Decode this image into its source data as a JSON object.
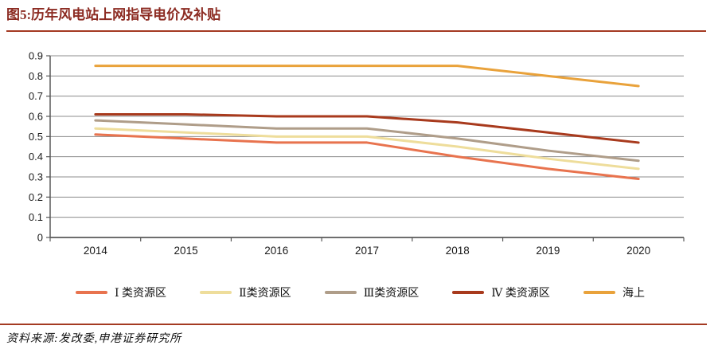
{
  "header": {
    "title": "图5:历年风电站上网指导电价及补贴",
    "accent_color": "#8C2B22",
    "rule_color": "#A43A22"
  },
  "chart_data": {
    "type": "line",
    "title": "历年风电站上网指导电价及补贴",
    "categories": [
      "2014",
      "2015",
      "2016",
      "2017",
      "2018",
      "2019",
      "2020"
    ],
    "series": [
      {
        "name": "Ⅰ 类资源区",
        "color": "#E8734E",
        "values": [
          0.51,
          0.49,
          0.47,
          0.47,
          0.4,
          0.34,
          0.29
        ]
      },
      {
        "name": "Ⅱ类资源区",
        "color": "#EEDD9B",
        "values": [
          0.54,
          0.52,
          0.5,
          0.5,
          0.45,
          0.39,
          0.34
        ]
      },
      {
        "name": "Ⅲ类资源区",
        "color": "#AF9D89",
        "values": [
          0.58,
          0.56,
          0.54,
          0.54,
          0.49,
          0.43,
          0.38
        ]
      },
      {
        "name": "Ⅳ 类资源区",
        "color": "#A83A1D",
        "values": [
          0.61,
          0.61,
          0.6,
          0.6,
          0.57,
          0.52,
          0.47
        ]
      },
      {
        "name": "海上",
        "color": "#E9A23B",
        "values": [
          0.85,
          0.85,
          0.85,
          0.85,
          0.85,
          0.8,
          0.75
        ]
      }
    ],
    "xlabel": "",
    "ylabel": "",
    "ylim": [
      0,
      0.9
    ],
    "ytick_step": 0.1,
    "yticks": [
      "0.9",
      "0.8",
      "0.7",
      "0.6",
      "0.5",
      "0.4",
      "0.3",
      "0.2",
      "0.1",
      "0"
    ],
    "grid": true,
    "gridline_color": "#8C8C8C",
    "axis_color": "#595959",
    "tick_label_color": "#1A1A1A",
    "legend_position": "bottom"
  },
  "footer": {
    "source": "资料来源:发改委,申港证券研究所"
  }
}
